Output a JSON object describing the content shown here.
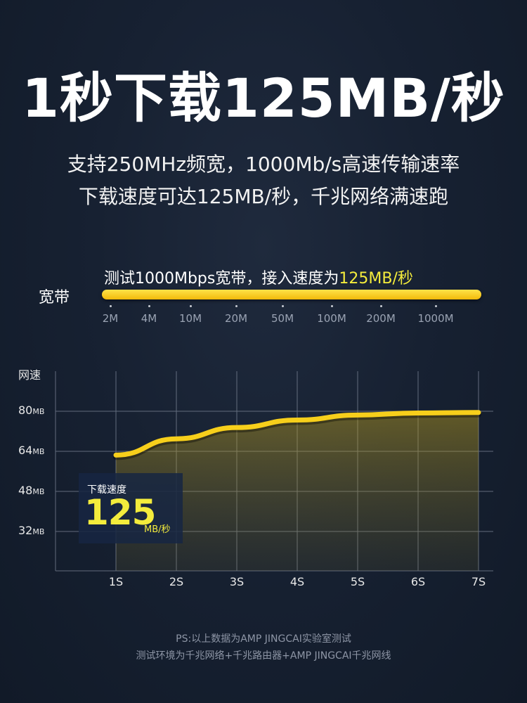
{
  "header": {
    "title": "1秒下载125MB/秒",
    "subtitle_line1": "支持250MHz频宽，1000Mb/s高速传输速率",
    "subtitle_line2": "下载速度可达125MB/秒，千兆网络满速跑"
  },
  "broadband": {
    "label": "宽带",
    "caption_prefix": "测试1000Mbps宽带，接入速度为",
    "caption_highlight": "125MB/秒",
    "ticks": [
      "2M",
      "4M",
      "10M",
      "20M",
      "50M",
      "100M",
      "200M",
      "1000M"
    ],
    "bar_color": "#f5c518"
  },
  "speed_box": {
    "label": "下载速度",
    "value": "125",
    "unit": "MB/秒"
  },
  "footer": {
    "line1": "PS:以上数据为AMP JINGCAI实验室测试",
    "line2": "测试环境为千兆网络+千兆路由器+AMP JINGCAI千兆网线"
  },
  "colors": {
    "accent": "#f4ec3c",
    "curve": "#f7cf1b",
    "background": "#172132",
    "grid": "#7c8596"
  },
  "chart_data": {
    "type": "area",
    "title": "",
    "ylabel": "网速",
    "xlabel": "",
    "x": [
      "1S",
      "2S",
      "3S",
      "4S",
      "5S",
      "6S",
      "7S"
    ],
    "y_ticks": [
      {
        "value": 80,
        "label": "80",
        "unit": "MB"
      },
      {
        "value": 64,
        "label": "64",
        "unit": "MB"
      },
      {
        "value": 48,
        "label": "48",
        "unit": "MB"
      },
      {
        "value": 32,
        "label": "32",
        "unit": "MB"
      }
    ],
    "series": [
      {
        "name": "下载速度",
        "values": [
          62.5,
          69,
          73.5,
          76.5,
          78.5,
          79.3,
          79.5
        ]
      }
    ],
    "ylim": [
      16,
      96
    ],
    "grid": true,
    "legend": "none"
  }
}
